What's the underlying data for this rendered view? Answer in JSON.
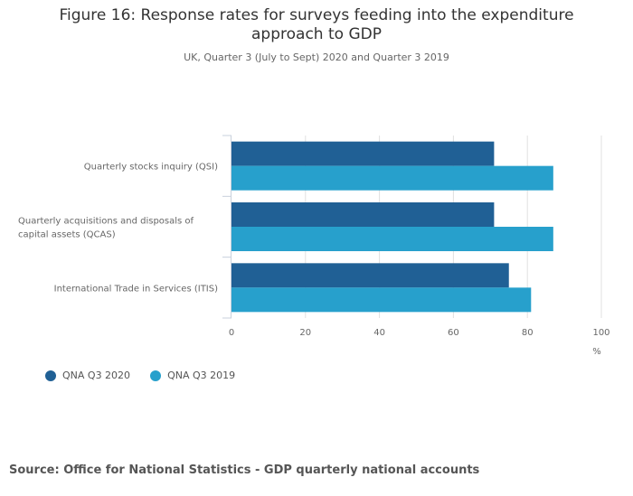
{
  "chart_data": {
    "type": "bar",
    "orientation": "horizontal",
    "title_lines": [
      "Figure 16: Response rates for surveys feeding into the expenditure",
      "approach to GDP"
    ],
    "subtitle": "UK, Quarter 3 (July to Sept) 2020 and Quarter 3 2019",
    "categories": [
      [
        "Quarterly stocks inquiry (QSI)"
      ],
      [
        "Quarterly acquisitions and disposals of",
        "capital assets (QCAS)"
      ],
      [
        "International Trade in Services (ITIS)"
      ]
    ],
    "series": [
      {
        "name": "QNA Q3 2020",
        "color": "#206095",
        "values": [
          71,
          71,
          75
        ]
      },
      {
        "name": "QNA Q3 2019",
        "color": "#27a0cc",
        "values": [
          87,
          87,
          81
        ]
      }
    ],
    "xlabel": "%",
    "xlim": [
      0,
      100
    ],
    "xticks": [
      "0",
      "20",
      "40",
      "60",
      "80",
      "100"
    ],
    "grid": true,
    "legend_position": "bottom-left"
  },
  "source": "Source: Office for National Statistics - GDP quarterly national accounts"
}
